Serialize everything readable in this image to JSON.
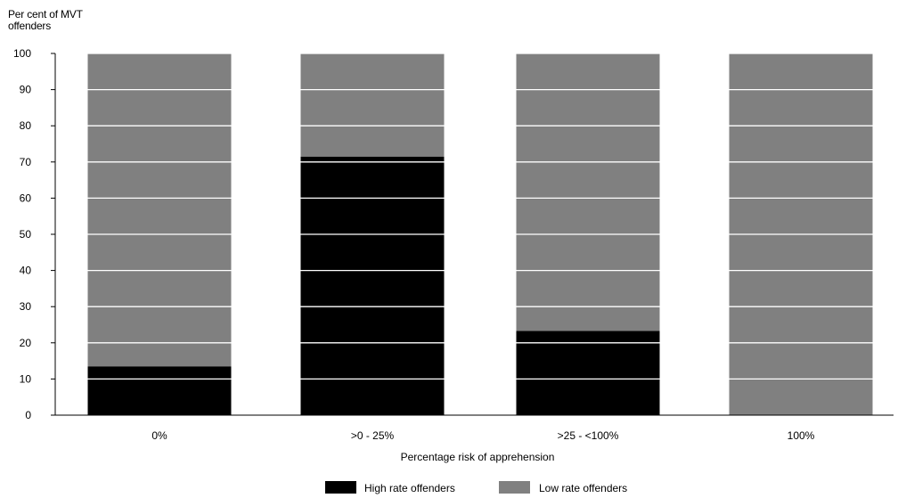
{
  "chart_data": {
    "type": "bar",
    "stacked": true,
    "ylabel_lines": [
      "Per cent of MVT",
      "offenders"
    ],
    "xlabel": "Percentage risk of apprehension",
    "categories": [
      "0%",
      ">0 - 25%",
      ">25 - <100%",
      "100%"
    ],
    "series": [
      {
        "name": "High rate offenders",
        "color": "#000000",
        "values": [
          13.5,
          71.5,
          23.3,
          0
        ]
      },
      {
        "name": "Low rate offenders",
        "color": "#808080",
        "values": [
          86.5,
          28.5,
          76.7,
          100
        ]
      }
    ],
    "ylim": [
      0,
      100
    ],
    "yticks": [
      0,
      10,
      20,
      30,
      40,
      50,
      60,
      70,
      80,
      90,
      100
    ],
    "grid": "white horizontal lines across bars",
    "legend_position": "bottom-center"
  }
}
